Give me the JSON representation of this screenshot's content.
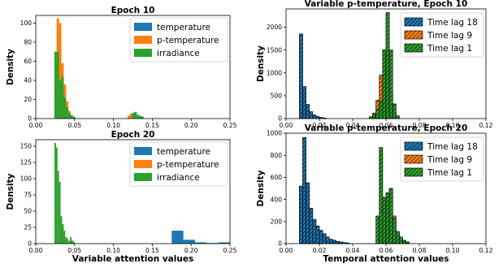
{
  "colors": {
    "blue": "#1f77b4",
    "orange": "#ff7f0e",
    "green": "#2ca02c"
  },
  "chart_data": [
    {
      "type": "histogram",
      "title": "Epoch 10",
      "xlabel": "",
      "ylabel": "Density",
      "xlim": [
        0,
        0.25
      ],
      "ylim": [
        0,
        108
      ],
      "xticks": [
        0.0,
        0.05,
        0.1,
        0.15,
        0.2,
        0.25
      ],
      "xtick_labels": [
        "0.00",
        "0.05",
        "0.10",
        "0.15",
        "0.20",
        "0.25"
      ],
      "yticks": [
        0,
        20,
        40,
        60,
        80,
        100
      ],
      "ytick_labels": [
        "0",
        "20",
        "40",
        "60",
        "80",
        "100"
      ],
      "hatched": false,
      "legend": "upper right",
      "series": [
        {
          "name": "temperature",
          "color": "blue",
          "bins": [
            [
              0.024,
              0.027,
              62
            ],
            [
              0.027,
              0.03,
              98
            ],
            [
              0.03,
              0.033,
              80
            ],
            [
              0.033,
              0.036,
              46
            ],
            [
              0.036,
              0.039,
              28
            ],
            [
              0.039,
              0.042,
              12
            ],
            [
              0.042,
              0.045,
              6
            ],
            [
              0.045,
              0.048,
              3
            ],
            [
              0.12,
              0.123,
              2
            ],
            [
              0.123,
              0.126,
              4
            ],
            [
              0.126,
              0.129,
              2
            ]
          ]
        },
        {
          "name": "p-temperature",
          "color": "orange",
          "bins": [
            [
              0.024,
              0.027,
              70
            ],
            [
              0.027,
              0.03,
              105
            ],
            [
              0.03,
              0.033,
              100
            ],
            [
              0.033,
              0.036,
              58
            ],
            [
              0.036,
              0.039,
              36
            ],
            [
              0.039,
              0.042,
              18
            ],
            [
              0.042,
              0.045,
              8
            ],
            [
              0.045,
              0.048,
              4
            ],
            [
              0.118,
              0.121,
              3
            ],
            [
              0.121,
              0.124,
              5
            ],
            [
              0.124,
              0.127,
              4
            ],
            [
              0.127,
              0.13,
              2
            ]
          ]
        },
        {
          "name": "irradiance",
          "color": "green",
          "bins": [
            [
              0.024,
              0.027,
              70
            ],
            [
              0.027,
              0.03,
              70
            ],
            [
              0.03,
              0.033,
              40
            ],
            [
              0.033,
              0.036,
              44
            ],
            [
              0.036,
              0.039,
              22
            ],
            [
              0.039,
              0.042,
              12
            ],
            [
              0.042,
              0.045,
              6
            ],
            [
              0.045,
              0.048,
              3
            ],
            [
              0.048,
              0.051,
              2
            ],
            [
              0.124,
              0.127,
              6
            ],
            [
              0.127,
              0.13,
              7
            ],
            [
              0.13,
              0.133,
              4
            ],
            [
              0.133,
              0.136,
              3
            ],
            [
              0.136,
              0.139,
              2
            ]
          ]
        }
      ]
    },
    {
      "type": "histogram",
      "title": "Variable p-temperature, Epoch 10",
      "xlabel": "",
      "ylabel": "Density",
      "xlim": [
        0,
        0.12
      ],
      "ylim": [
        0,
        2400
      ],
      "xticks": [
        0.0,
        0.02,
        0.04,
        0.06,
        0.08,
        0.1,
        0.12
      ],
      "xtick_labels": [
        "0.00",
        "0.02",
        "0.04",
        "0.06",
        "0.08",
        "0.10",
        "0.12"
      ],
      "yticks": [
        0,
        500,
        1000,
        1500,
        2000
      ],
      "ytick_labels": [
        "0",
        "500",
        "1000",
        "1500",
        "2000"
      ],
      "hatched": true,
      "legend": "upper right",
      "series": [
        {
          "name": "Time lag 18",
          "color": "blue",
          "bins": [
            [
              0.008,
              0.01,
              1850
            ],
            [
              0.01,
              0.012,
              700
            ],
            [
              0.012,
              0.014,
              310
            ],
            [
              0.014,
              0.016,
              150
            ],
            [
              0.016,
              0.018,
              80
            ],
            [
              0.018,
              0.02,
              45
            ],
            [
              0.02,
              0.022,
              25
            ],
            [
              0.022,
              0.024,
              12
            ]
          ]
        },
        {
          "name": "Time lag 9",
          "color": "orange",
          "bins": [
            [
              0.052,
              0.054,
              120
            ],
            [
              0.054,
              0.056,
              400
            ],
            [
              0.056,
              0.058,
              950
            ],
            [
              0.058,
              0.06,
              1500
            ],
            [
              0.06,
              0.062,
              1300
            ],
            [
              0.062,
              0.064,
              600
            ],
            [
              0.064,
              0.066,
              150
            ]
          ]
        },
        {
          "name": "Time lag 1",
          "color": "green",
          "bins": [
            [
              0.05,
              0.052,
              40
            ],
            [
              0.052,
              0.054,
              80
            ],
            [
              0.054,
              0.056,
              200
            ],
            [
              0.056,
              0.058,
              380
            ],
            [
              0.058,
              0.06,
              1500
            ],
            [
              0.06,
              0.062,
              2320
            ],
            [
              0.062,
              0.064,
              1500
            ],
            [
              0.064,
              0.066,
              320
            ],
            [
              0.066,
              0.068,
              60
            ]
          ]
        }
      ]
    },
    {
      "type": "histogram",
      "title": "Epoch 20",
      "xlabel": "Variable attention values",
      "ylabel": "Density",
      "xlim": [
        0,
        0.25
      ],
      "ylim": [
        0,
        160
      ],
      "xticks": [
        0.0,
        0.05,
        0.1,
        0.15,
        0.2,
        0.25
      ],
      "xtick_labels": [
        "0.00",
        "0.05",
        "0.10",
        "0.15",
        "0.20",
        "0.25"
      ],
      "yticks": [
        0,
        25,
        50,
        75,
        100,
        125,
        150
      ],
      "ytick_labels": [
        "0",
        "25",
        "50",
        "75",
        "100",
        "125",
        "150"
      ],
      "hatched": false,
      "legend": "upper right",
      "series": [
        {
          "name": "temperature",
          "color": "blue",
          "bins": [
            [
              0.175,
              0.19,
              20
            ],
            [
              0.19,
              0.205,
              6
            ],
            [
              0.205,
              0.22,
              2
            ],
            [
              0.22,
              0.235,
              1
            ],
            [
              0.235,
              0.25,
              2
            ]
          ]
        },
        {
          "name": "p-temperature",
          "color": "orange",
          "bins": [
            [
              0.024,
              0.027,
              5
            ],
            [
              0.027,
              0.03,
              3
            ],
            [
              0.03,
              0.033,
              2
            ]
          ]
        },
        {
          "name": "irradiance",
          "color": "green",
          "bins": [
            [
              0.024,
              0.026,
              155
            ],
            [
              0.026,
              0.028,
              148
            ],
            [
              0.028,
              0.03,
              112
            ],
            [
              0.03,
              0.032,
              95
            ],
            [
              0.032,
              0.034,
              42
            ],
            [
              0.034,
              0.036,
              30
            ],
            [
              0.036,
              0.038,
              20
            ],
            [
              0.038,
              0.04,
              10
            ],
            [
              0.04,
              0.042,
              8
            ],
            [
              0.042,
              0.044,
              4
            ],
            [
              0.044,
              0.046,
              10
            ],
            [
              0.046,
              0.048,
              5
            ],
            [
              0.048,
              0.05,
              3
            ]
          ]
        }
      ]
    },
    {
      "type": "histogram",
      "title": "Variable p-temperature, Epoch 20",
      "xlabel": "Temporal attention values",
      "ylabel": "Density",
      "xlim": [
        0,
        0.12
      ],
      "ylim": [
        0,
        1000
      ],
      "xticks": [
        0.0,
        0.02,
        0.04,
        0.06,
        0.08,
        0.1,
        0.12
      ],
      "xtick_labels": [
        "0.00",
        "0.02",
        "0.04",
        "0.06",
        "0.08",
        "0.10",
        "0.12"
      ],
      "yticks": [
        0,
        200,
        400,
        600,
        800,
        1000
      ],
      "ytick_labels": [
        "0",
        "200",
        "400",
        "600",
        "800",
        "1000"
      ],
      "hatched": true,
      "legend": "upper right",
      "series": [
        {
          "name": "Time lag 18",
          "color": "blue",
          "bins": [
            [
              0.008,
              0.01,
              520
            ],
            [
              0.01,
              0.012,
              960
            ],
            [
              0.012,
              0.014,
              550
            ],
            [
              0.014,
              0.016,
              320
            ],
            [
              0.016,
              0.018,
              220
            ],
            [
              0.018,
              0.02,
              160
            ],
            [
              0.02,
              0.022,
              120
            ],
            [
              0.022,
              0.024,
              90
            ],
            [
              0.024,
              0.026,
              60
            ],
            [
              0.026,
              0.028,
              40
            ],
            [
              0.028,
              0.03,
              30
            ],
            [
              0.03,
              0.032,
              20
            ],
            [
              0.032,
              0.034,
              15
            ],
            [
              0.034,
              0.036,
              10
            ],
            [
              0.036,
              0.038,
              5
            ]
          ]
        },
        {
          "name": "Time lag 9",
          "color": "orange",
          "bins": [
            [
              0.058,
              0.06,
              200
            ],
            [
              0.06,
              0.062,
              420
            ],
            [
              0.062,
              0.064,
              480
            ],
            [
              0.064,
              0.066,
              250
            ],
            [
              0.066,
              0.068,
              100
            ]
          ]
        },
        {
          "name": "Time lag 1",
          "color": "green",
          "bins": [
            [
              0.054,
              0.056,
              250
            ],
            [
              0.056,
              0.058,
              870
            ],
            [
              0.058,
              0.06,
              420
            ],
            [
              0.06,
              0.062,
              460
            ],
            [
              0.062,
              0.064,
              500
            ],
            [
              0.064,
              0.066,
              230
            ],
            [
              0.066,
              0.068,
              110
            ],
            [
              0.068,
              0.07,
              60
            ],
            [
              0.07,
              0.072,
              30
            ],
            [
              0.072,
              0.074,
              15
            ]
          ]
        }
      ]
    }
  ]
}
